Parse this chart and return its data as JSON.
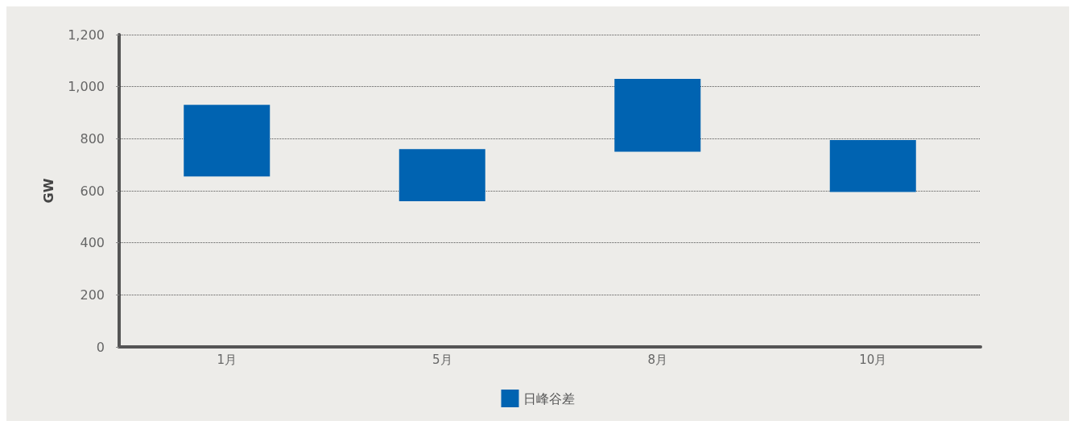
{
  "chart_data": {
    "type": "bar",
    "ylabel": "GW",
    "categories": [
      "1月",
      "5月",
      "8月",
      "10月"
    ],
    "series": [
      {
        "name": "日峰谷差",
        "color": "#0063b1",
        "values": [
          275,
          200,
          280,
          200
        ],
        "base": [
          655,
          560,
          750,
          595
        ]
      }
    ],
    "ylim": [
      0,
      1200
    ],
    "yticks": [
      0,
      {
        "value": 200,
        "label": "200"
      },
      {
        "value": 400,
        "label": "400"
      },
      {
        "value": 600,
        "label": "600"
      },
      {
        "value": 800,
        "label": "800"
      },
      {
        "value": 1000,
        "label": "1,000"
      },
      {
        "value": 1200,
        "label": "1,200"
      }
    ],
    "grid": "y",
    "line_style": "dotted",
    "legend": "bottom"
  }
}
